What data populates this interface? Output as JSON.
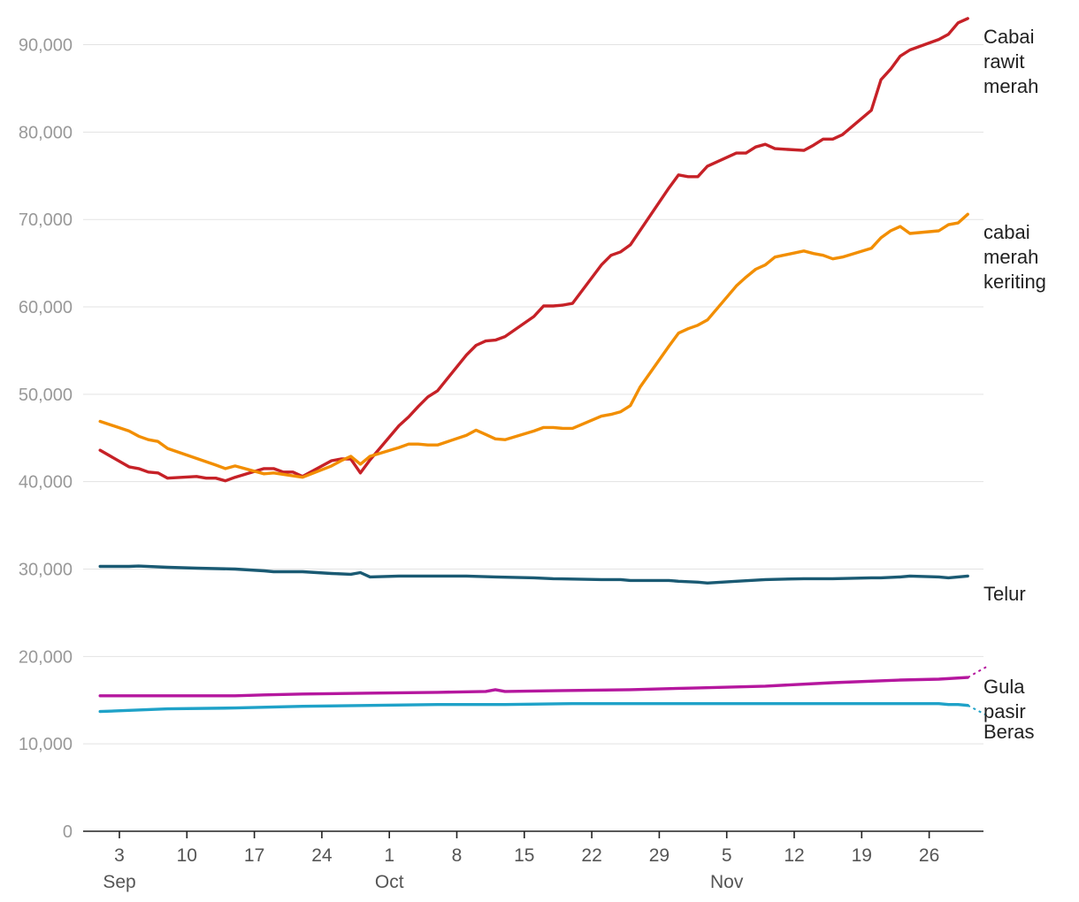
{
  "chart_data": {
    "type": "line",
    "title": "",
    "xlabel": "",
    "ylabel": "",
    "ylim": [
      0,
      95000
    ],
    "yticks": [
      0,
      10000,
      20000,
      30000,
      40000,
      50000,
      60000,
      70000,
      80000,
      90000
    ],
    "ytick_labels": [
      "0",
      "10,000",
      "20,000",
      "30,000",
      "40,000",
      "50,000",
      "60,000",
      "70,000",
      "80,000",
      "90,000"
    ],
    "xlim": [
      "2023-08-31",
      "2023-12-01"
    ],
    "xticks": [
      {
        "date": "2023-09-03",
        "day": "3",
        "month": "Sep"
      },
      {
        "date": "2023-09-10",
        "day": "10",
        "month": ""
      },
      {
        "date": "2023-09-17",
        "day": "17",
        "month": ""
      },
      {
        "date": "2023-09-24",
        "day": "24",
        "month": ""
      },
      {
        "date": "2023-10-01",
        "day": "1",
        "month": "Oct"
      },
      {
        "date": "2023-10-08",
        "day": "8",
        "month": ""
      },
      {
        "date": "2023-10-15",
        "day": "15",
        "month": ""
      },
      {
        "date": "2023-10-22",
        "day": "22",
        "month": ""
      },
      {
        "date": "2023-10-29",
        "day": "29",
        "month": ""
      },
      {
        "date": "2023-11-05",
        "day": "5",
        "month": "Nov"
      },
      {
        "date": "2023-11-12",
        "day": "12",
        "month": ""
      },
      {
        "date": "2023-11-19",
        "day": "19",
        "month": ""
      },
      {
        "date": "2023-11-26",
        "day": "26",
        "month": ""
      }
    ],
    "grid": true,
    "legend": "direct labels at line ends",
    "series": [
      {
        "name": "Cabai rawit merah",
        "label_lines": [
          "Cabai",
          "rawit",
          "merah"
        ],
        "color": "#c62127",
        "points": [
          [
            "2023-09-01",
            43600
          ],
          [
            "2023-09-04",
            41700
          ],
          [
            "2023-09-05",
            41500
          ],
          [
            "2023-09-06",
            41100
          ],
          [
            "2023-09-07",
            41000
          ],
          [
            "2023-09-08",
            40400
          ],
          [
            "2023-09-11",
            40600
          ],
          [
            "2023-09-12",
            40400
          ],
          [
            "2023-09-13",
            40400
          ],
          [
            "2023-09-14",
            40100
          ],
          [
            "2023-09-15",
            40500
          ],
          [
            "2023-09-18",
            41500
          ],
          [
            "2023-09-19",
            41500
          ],
          [
            "2023-09-20",
            41100
          ],
          [
            "2023-09-21",
            41100
          ],
          [
            "2023-09-22",
            40600
          ],
          [
            "2023-09-25",
            42400
          ],
          [
            "2023-09-26",
            42600
          ],
          [
            "2023-09-27",
            42600
          ],
          [
            "2023-09-28",
            41000
          ],
          [
            "2023-09-29",
            42500
          ],
          [
            "2023-10-02",
            46400
          ],
          [
            "2023-10-03",
            47400
          ],
          [
            "2023-10-04",
            48600
          ],
          [
            "2023-10-05",
            49700
          ],
          [
            "2023-10-06",
            50400
          ],
          [
            "2023-10-09",
            54500
          ],
          [
            "2023-10-10",
            55600
          ],
          [
            "2023-10-11",
            56100
          ],
          [
            "2023-10-12",
            56200
          ],
          [
            "2023-10-13",
            56600
          ],
          [
            "2023-10-16",
            58900
          ],
          [
            "2023-10-17",
            60100
          ],
          [
            "2023-10-18",
            60100
          ],
          [
            "2023-10-19",
            60200
          ],
          [
            "2023-10-20",
            60400
          ],
          [
            "2023-10-23",
            64800
          ],
          [
            "2023-10-24",
            65900
          ],
          [
            "2023-10-25",
            66300
          ],
          [
            "2023-10-26",
            67100
          ],
          [
            "2023-10-30",
            73600
          ],
          [
            "2023-10-31",
            75100
          ],
          [
            "2023-11-01",
            74900
          ],
          [
            "2023-11-02",
            74900
          ],
          [
            "2023-11-03",
            76100
          ],
          [
            "2023-11-06",
            77600
          ],
          [
            "2023-11-07",
            77600
          ],
          [
            "2023-11-08",
            78300
          ],
          [
            "2023-11-09",
            78600
          ],
          [
            "2023-11-10",
            78100
          ],
          [
            "2023-11-13",
            77900
          ],
          [
            "2023-11-14",
            78500
          ],
          [
            "2023-11-15",
            79200
          ],
          [
            "2023-11-16",
            79200
          ],
          [
            "2023-11-17",
            79700
          ],
          [
            "2023-11-20",
            82500
          ],
          [
            "2023-11-21",
            86000
          ],
          [
            "2023-11-22",
            87200
          ],
          [
            "2023-11-23",
            88700
          ],
          [
            "2023-11-24",
            89400
          ],
          [
            "2023-11-27",
            90600
          ],
          [
            "2023-11-28",
            91200
          ],
          [
            "2023-11-29",
            92500
          ],
          [
            "2023-11-30",
            93000
          ]
        ]
      },
      {
        "name": "cabai merah keriting",
        "label_lines": [
          "cabai",
          "merah",
          "keriting"
        ],
        "color": "#f28e00",
        "points": [
          [
            "2023-09-01",
            46900
          ],
          [
            "2023-09-04",
            45800
          ],
          [
            "2023-09-05",
            45200
          ],
          [
            "2023-09-06",
            44800
          ],
          [
            "2023-09-07",
            44600
          ],
          [
            "2023-09-08",
            43800
          ],
          [
            "2023-09-13",
            41900
          ],
          [
            "2023-09-14",
            41500
          ],
          [
            "2023-09-15",
            41800
          ],
          [
            "2023-09-18",
            40900
          ],
          [
            "2023-09-19",
            41000
          ],
          [
            "2023-09-22",
            40500
          ],
          [
            "2023-09-25",
            41800
          ],
          [
            "2023-09-26",
            42400
          ],
          [
            "2023-09-27",
            42900
          ],
          [
            "2023-09-28",
            42000
          ],
          [
            "2023-09-29",
            42900
          ],
          [
            "2023-10-02",
            43900
          ],
          [
            "2023-10-03",
            44300
          ],
          [
            "2023-10-04",
            44300
          ],
          [
            "2023-10-05",
            44200
          ],
          [
            "2023-10-06",
            44200
          ],
          [
            "2023-10-09",
            45300
          ],
          [
            "2023-10-10",
            45900
          ],
          [
            "2023-10-11",
            45400
          ],
          [
            "2023-10-12",
            44900
          ],
          [
            "2023-10-13",
            44800
          ],
          [
            "2023-10-16",
            45800
          ],
          [
            "2023-10-17",
            46200
          ],
          [
            "2023-10-18",
            46200
          ],
          [
            "2023-10-19",
            46100
          ],
          [
            "2023-10-20",
            46100
          ],
          [
            "2023-10-23",
            47500
          ],
          [
            "2023-10-24",
            47700
          ],
          [
            "2023-10-25",
            48000
          ],
          [
            "2023-10-26",
            48700
          ],
          [
            "2023-10-27",
            50800
          ],
          [
            "2023-10-30",
            55500
          ],
          [
            "2023-10-31",
            57000
          ],
          [
            "2023-11-01",
            57500
          ],
          [
            "2023-11-02",
            57900
          ],
          [
            "2023-11-03",
            58500
          ],
          [
            "2023-11-06",
            62400
          ],
          [
            "2023-11-07",
            63400
          ],
          [
            "2023-11-08",
            64300
          ],
          [
            "2023-11-09",
            64800
          ],
          [
            "2023-11-10",
            65700
          ],
          [
            "2023-11-13",
            66400
          ],
          [
            "2023-11-14",
            66100
          ],
          [
            "2023-11-15",
            65900
          ],
          [
            "2023-11-16",
            65500
          ],
          [
            "2023-11-17",
            65700
          ],
          [
            "2023-11-20",
            66700
          ],
          [
            "2023-11-21",
            67900
          ],
          [
            "2023-11-22",
            68700
          ],
          [
            "2023-11-23",
            69200
          ],
          [
            "2023-11-24",
            68400
          ],
          [
            "2023-11-27",
            68700
          ],
          [
            "2023-11-28",
            69400
          ],
          [
            "2023-11-29",
            69600
          ],
          [
            "2023-11-30",
            70600
          ]
        ]
      },
      {
        "name": "Telur",
        "label_lines": [
          "Telur"
        ],
        "color": "#1a5a73",
        "points": [
          [
            "2023-09-01",
            30300
          ],
          [
            "2023-09-04",
            30300
          ],
          [
            "2023-09-05",
            30350
          ],
          [
            "2023-09-08",
            30200
          ],
          [
            "2023-09-11",
            30100
          ],
          [
            "2023-09-15",
            30000
          ],
          [
            "2023-09-18",
            29800
          ],
          [
            "2023-09-19",
            29700
          ],
          [
            "2023-09-22",
            29700
          ],
          [
            "2023-09-25",
            29500
          ],
          [
            "2023-09-27",
            29400
          ],
          [
            "2023-09-28",
            29600
          ],
          [
            "2023-09-29",
            29100
          ],
          [
            "2023-10-02",
            29200
          ],
          [
            "2023-10-05",
            29200
          ],
          [
            "2023-10-09",
            29200
          ],
          [
            "2023-10-12",
            29100
          ],
          [
            "2023-10-16",
            29000
          ],
          [
            "2023-10-18",
            28900
          ],
          [
            "2023-10-23",
            28800
          ],
          [
            "2023-10-25",
            28800
          ],
          [
            "2023-10-26",
            28700
          ],
          [
            "2023-10-30",
            28700
          ],
          [
            "2023-10-31",
            28600
          ],
          [
            "2023-11-02",
            28500
          ],
          [
            "2023-11-03",
            28400
          ],
          [
            "2023-11-06",
            28600
          ],
          [
            "2023-11-09",
            28800
          ],
          [
            "2023-11-13",
            28900
          ],
          [
            "2023-11-16",
            28900
          ],
          [
            "2023-11-20",
            29000
          ],
          [
            "2023-11-21",
            29000
          ],
          [
            "2023-11-23",
            29100
          ],
          [
            "2023-11-24",
            29200
          ],
          [
            "2023-11-27",
            29100
          ],
          [
            "2023-11-28",
            29000
          ],
          [
            "2023-11-29",
            29100
          ],
          [
            "2023-11-30",
            29200
          ]
        ]
      },
      {
        "name": "Gula pasir",
        "label_lines": [
          "Gula",
          "pasir"
        ],
        "color": "#b5179e",
        "points": [
          [
            "2023-09-01",
            15500
          ],
          [
            "2023-09-08",
            15500
          ],
          [
            "2023-09-15",
            15500
          ],
          [
            "2023-09-18",
            15600
          ],
          [
            "2023-09-22",
            15700
          ],
          [
            "2023-09-29",
            15800
          ],
          [
            "2023-10-06",
            15900
          ],
          [
            "2023-10-11",
            16000
          ],
          [
            "2023-10-12",
            16200
          ],
          [
            "2023-10-13",
            16000
          ],
          [
            "2023-10-19",
            16100
          ],
          [
            "2023-10-26",
            16200
          ],
          [
            "2023-11-02",
            16400
          ],
          [
            "2023-11-09",
            16600
          ],
          [
            "2023-11-16",
            17000
          ],
          [
            "2023-11-23",
            17300
          ],
          [
            "2023-11-27",
            17400
          ],
          [
            "2023-11-30",
            17600
          ],
          [
            "2023-12-01",
            18800
          ]
        ]
      },
      {
        "name": "Beras",
        "label_lines": [
          "Beras"
        ],
        "color": "#1fa2c8",
        "points": [
          [
            "2023-09-01",
            13700
          ],
          [
            "2023-09-08",
            14000
          ],
          [
            "2023-09-15",
            14100
          ],
          [
            "2023-09-22",
            14300
          ],
          [
            "2023-09-29",
            14400
          ],
          [
            "2023-10-06",
            14500
          ],
          [
            "2023-10-13",
            14500
          ],
          [
            "2023-10-20",
            14600
          ],
          [
            "2023-10-27",
            14600
          ],
          [
            "2023-11-10",
            14600
          ],
          [
            "2023-11-24",
            14600
          ],
          [
            "2023-11-27",
            14600
          ],
          [
            "2023-11-28",
            14500
          ],
          [
            "2023-11-29",
            14500
          ],
          [
            "2023-11-30",
            14400
          ],
          [
            "2023-12-01",
            13300
          ]
        ]
      }
    ]
  }
}
